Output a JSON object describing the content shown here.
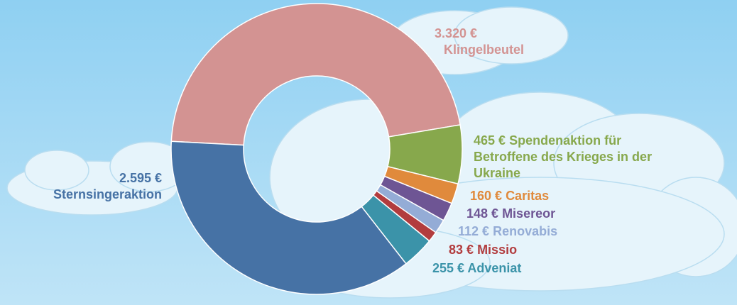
{
  "chart_data": {
    "type": "donut",
    "categories": [
      "Klingelbeutel",
      "Spendenaktion für Betroffene des Krieges in der Ukraine",
      "Caritas",
      "Misereor",
      "Renovabis",
      "Missio",
      "Adveniat",
      "Sternsingeraktion"
    ],
    "values": [
      3320,
      465,
      160,
      148,
      112,
      83,
      255,
      2595
    ],
    "value_labels": [
      "3.320 €",
      "465 €",
      "160 €",
      "148 €",
      "112 €",
      "83 €",
      "255 €",
      "2.595 €"
    ],
    "colors": [
      "#d39392",
      "#87a84c",
      "#e08a3c",
      "#6e5594",
      "#94acd6",
      "#b23c3e",
      "#3b93a9",
      "#4672a5"
    ]
  }
}
